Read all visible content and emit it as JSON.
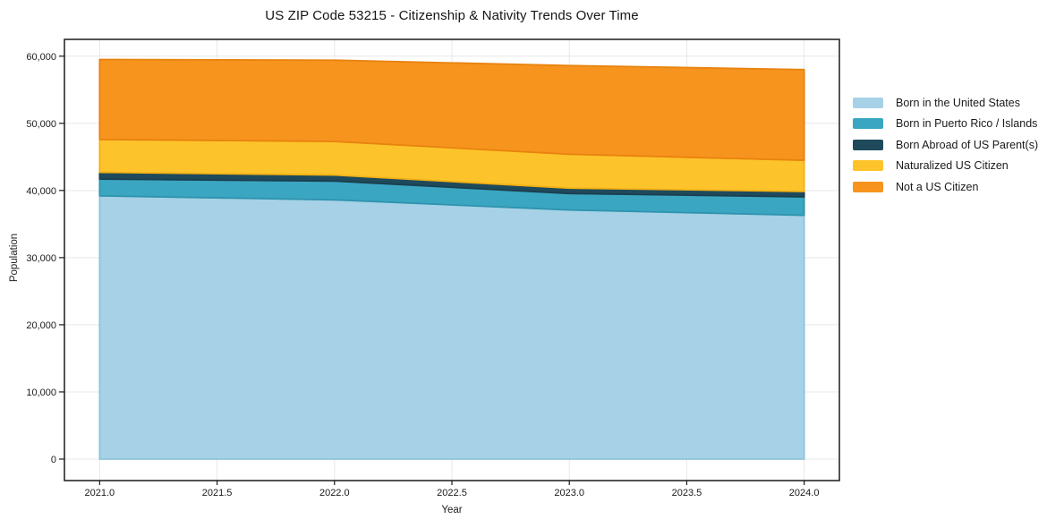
{
  "page": {
    "background": "#ffffff"
  },
  "chart_data": {
    "type": "area",
    "stacked": true,
    "title": "US ZIP Code 53215 - Citizenship & Nativity Trends Over Time",
    "xlabel": "Year",
    "ylabel": "Population",
    "x": [
      2021,
      2022,
      2023,
      2024
    ],
    "series": [
      {
        "key": "born-us",
        "name": "Born in the United States",
        "color": "#a6d1e6",
        "edge": "#8fc3db",
        "values": [
          39200,
          38600,
          37100,
          36300
        ]
      },
      {
        "key": "puerto-rico",
        "name": "Born in Puerto Rico / Islands",
        "color": "#3ba6c2",
        "edge": "#2e93ae",
        "values": [
          2500,
          2800,
          2450,
          2750
        ]
      },
      {
        "key": "born-abroad",
        "name": "Born Abroad of US Parent(s)",
        "color": "#1f4a5c",
        "edge": "#1a3f4f",
        "values": [
          1000,
          900,
          800,
          800
        ]
      },
      {
        "key": "naturalized",
        "name": "Naturalized US Citizen",
        "color": "#fdc32b",
        "edge": "#f2b114",
        "values": [
          4900,
          5000,
          5050,
          4650
        ]
      },
      {
        "key": "not-citizen",
        "name": "Not a US Citizen",
        "color": "#f7941e",
        "edge": "#e8830f",
        "values": [
          11900,
          12100,
          13200,
          13500
        ]
      }
    ],
    "totals": [
      59500,
      59400,
      58600,
      58000
    ],
    "xticks": {
      "values": [
        2021.0,
        2021.5,
        2022.0,
        2022.5,
        2023.0,
        2023.5,
        2024.0
      ],
      "labels": [
        "2021.0",
        "2021.5",
        "2022.0",
        "2022.5",
        "2023.0",
        "2023.5",
        "2024.0"
      ]
    },
    "yticks": {
      "values": [
        0,
        10000,
        20000,
        30000,
        40000,
        50000,
        60000
      ],
      "labels": [
        "0",
        "10,000",
        "20,000",
        "30,000",
        "40,000",
        "50,000",
        "60,000"
      ]
    },
    "xlim": [
      2020.85,
      2024.15
    ],
    "ylim": [
      -3200,
      62500
    ],
    "grid": true,
    "grid_color": "#e8e8e8",
    "spine_color": "#1a1a1a",
    "tick_color": "#1a1a1a",
    "legend_position": "right-outside"
  }
}
